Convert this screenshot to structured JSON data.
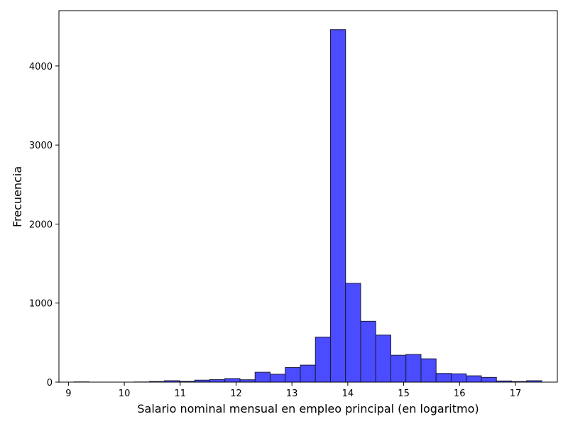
{
  "chart_data": {
    "type": "bar",
    "title": "",
    "xlabel": "Salario nominal mensual en empleo principal (en logaritmo)",
    "ylabel": "Frecuencia",
    "xlim": [
      8.83,
      17.75
    ],
    "ylim": [
      0,
      4700
    ],
    "xticks": [
      9,
      10,
      11,
      12,
      13,
      14,
      15,
      16,
      17
    ],
    "yticks": [
      0,
      1000,
      2000,
      3000,
      4000
    ],
    "grid": false,
    "bar_color": "#4b4bff",
    "edge_color": "#1a1a3a",
    "bin_edges": [
      9.1,
      9.37,
      9.64,
      9.91,
      10.18,
      10.45,
      10.72,
      10.99,
      11.26,
      11.53,
      11.8,
      12.07,
      12.34,
      12.61,
      12.88,
      13.15,
      13.42,
      13.69,
      13.96,
      14.23,
      14.5,
      14.77,
      15.04,
      15.31,
      15.58,
      15.85,
      16.12,
      16.39,
      16.66,
      16.93,
      17.2,
      17.47
    ],
    "counts": [
      3,
      0,
      0,
      0,
      2,
      8,
      18,
      10,
      25,
      32,
      45,
      30,
      125,
      100,
      185,
      215,
      570,
      4460,
      1250,
      770,
      595,
      340,
      350,
      295,
      110,
      105,
      80,
      60,
      15,
      8,
      18
    ]
  }
}
